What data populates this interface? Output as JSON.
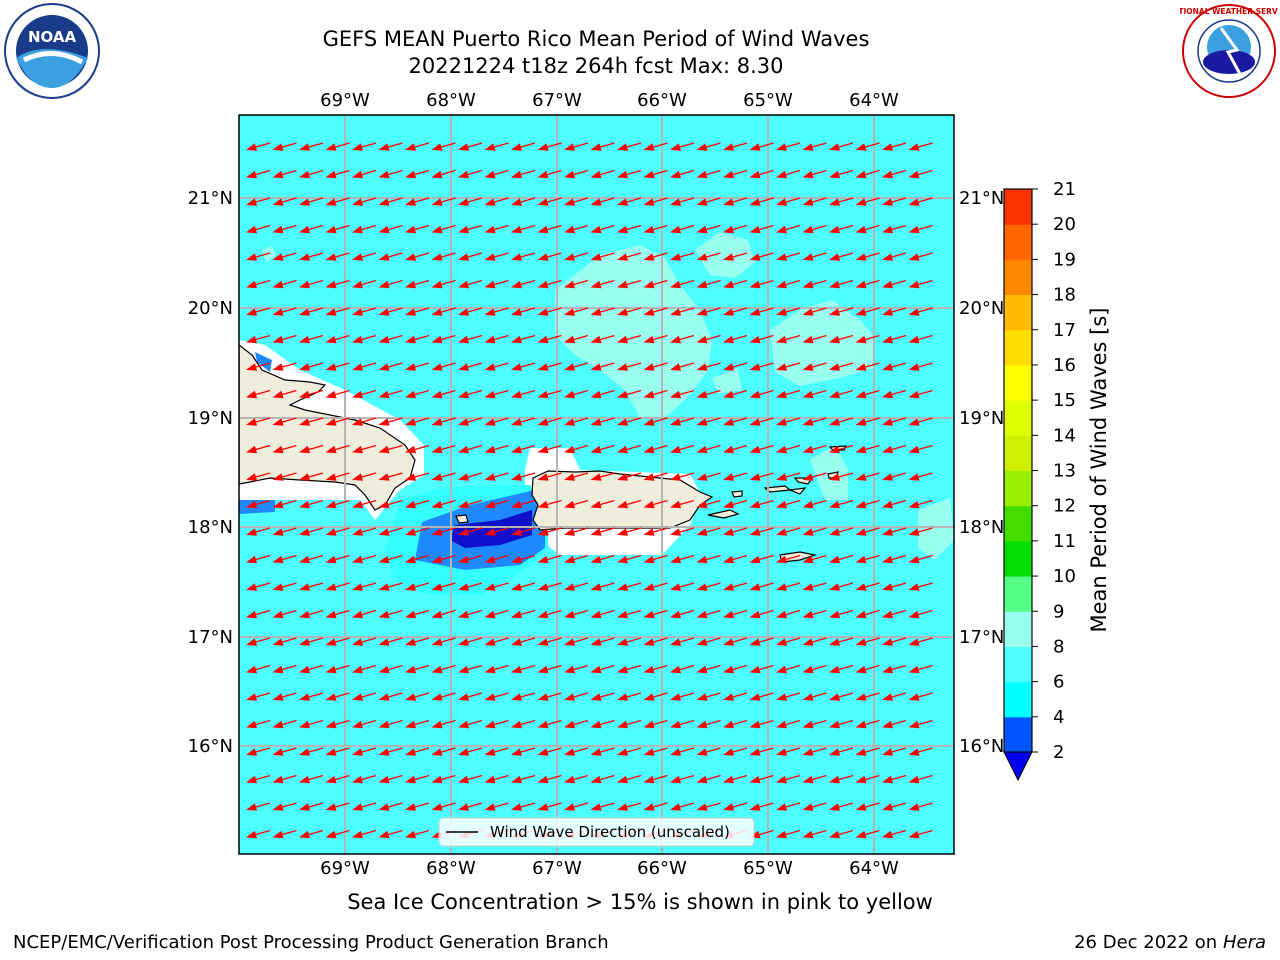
{
  "title": {
    "line1": "GEFS MEAN Puerto Rico Mean Period of Wind Waves",
    "line2": "20221224 t18z 264h fcst   Max: 8.30"
  },
  "map": {
    "lon_labels": [
      "69°W",
      "68°W",
      "67°W",
      "66°W",
      "65°W",
      "64°W"
    ],
    "lat_labels": [
      "21°N",
      "20°N",
      "19°N",
      "18°N",
      "17°N",
      "16°N"
    ],
    "legend_label": "Wind Wave Direction (unscaled)",
    "ocean_color": "#4dffff",
    "land_color": "#efeedd",
    "arrow_color": "#ff0000",
    "arrow_direction": "west-southwest"
  },
  "colorbar": {
    "label": "Mean Period of Wind Waves [s]",
    "ticks": [
      "2",
      "4",
      "6",
      "8",
      "9",
      "10",
      "11",
      "12",
      "13",
      "14",
      "15",
      "16",
      "17",
      "18",
      "19",
      "20",
      "21"
    ],
    "colors": [
      "#0055ff",
      "#00ffff",
      "#4dffff",
      "#99ffee",
      "#55ff88",
      "#00dd00",
      "#44dd00",
      "#99ee00",
      "#ccf000",
      "#ddff00",
      "#ffff00",
      "#ffdd00",
      "#ffbb00",
      "#ff8800",
      "#ff6600",
      "#ff3300",
      "#ff0000"
    ],
    "under_color": "#0000ee"
  },
  "caption": "Sea Ice Concentration > 15% is shown in pink to yellow",
  "footer": {
    "left": "NCEP/EMC/Verification Post Processing Product Generation Branch",
    "date": "26 Dec 2022 on",
    "host": "Hera"
  },
  "logos": {
    "noaa": "NOAA",
    "nws": "NATIONAL WEATHER SERVICE"
  }
}
